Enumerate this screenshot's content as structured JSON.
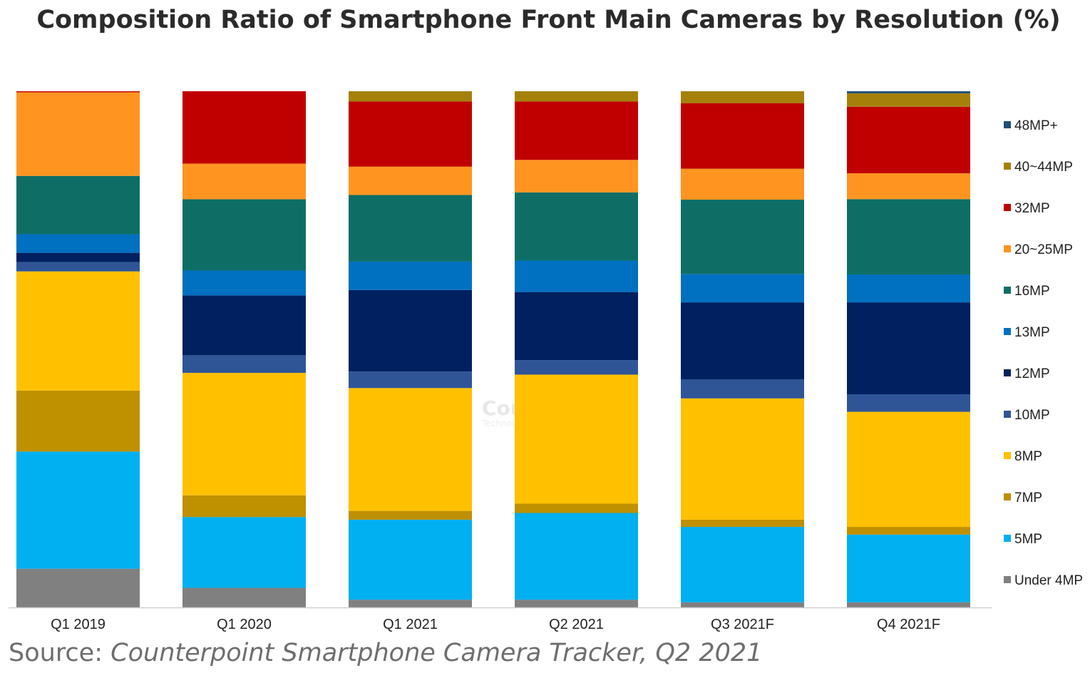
{
  "title": "Composition Ratio of Smartphone Front Main Cameras by Resolution (%)",
  "source": {
    "prefix": "Source:",
    "text": "Counterpoint Smartphone Camera Tracker, Q2 2021"
  },
  "watermark": {
    "name": "Counterpoint",
    "tagline": "Technology Market Research"
  },
  "chart_data": {
    "type": "bar",
    "stacked": true,
    "normalized_to": 100,
    "title": "Composition Ratio of Smartphone Front Main Cameras by Resolution (%)",
    "xlabel": "",
    "ylabel": "",
    "ylim": [
      0,
      100
    ],
    "grid": false,
    "legend_position": "right",
    "categories": [
      "Q1 2019",
      "Q1 2020",
      "Q1 2021",
      "Q2 2021",
      "Q3 2021F",
      "Q4 2021F"
    ],
    "series": [
      {
        "name": "Under 4MP",
        "color": "#808080",
        "values": [
          7.5,
          3.8,
          1.5,
          1.5,
          1.0,
          1.0
        ]
      },
      {
        "name": "5MP",
        "color": "#00B0F0",
        "values": [
          22.7,
          13.7,
          15.5,
          16.8,
          14.6,
          13.1
        ]
      },
      {
        "name": "7MP",
        "color": "#BF9000",
        "values": [
          11.8,
          4.2,
          1.7,
          1.8,
          1.4,
          1.5
        ]
      },
      {
        "name": "8MP",
        "color": "#FFC000",
        "values": [
          23.1,
          23.7,
          23.8,
          25.0,
          23.5,
          22.3
        ]
      },
      {
        "name": "10MP",
        "color": "#2F5597",
        "values": [
          1.8,
          3.4,
          3.2,
          2.8,
          3.7,
          3.4
        ]
      },
      {
        "name": "12MP",
        "color": "#002060",
        "values": [
          1.8,
          11.6,
          15.8,
          13.2,
          14.9,
          17.8
        ]
      },
      {
        "name": "13MP",
        "color": "#0070C0",
        "values": [
          3.6,
          4.8,
          5.5,
          6.1,
          5.5,
          5.4
        ]
      },
      {
        "name": "16MP",
        "color": "#0E6E66",
        "values": [
          11.3,
          13.8,
          12.9,
          13.2,
          14.4,
          14.6
        ]
      },
      {
        "name": "20~25MP",
        "color": "#FF9520",
        "values": [
          16.2,
          6.9,
          5.5,
          6.3,
          6.0,
          5.0
        ]
      },
      {
        "name": "32MP",
        "color": "#C00000",
        "values": [
          0.2,
          14.0,
          12.6,
          11.3,
          12.7,
          12.9
        ]
      },
      {
        "name": "40~44MP",
        "color": "#A5810B",
        "values": [
          0.0,
          0.0,
          2.0,
          2.0,
          2.3,
          2.6
        ]
      },
      {
        "name": "48MP+",
        "color": "#1F4E79",
        "values": [
          0.0,
          0.0,
          0.0,
          0.0,
          0.0,
          0.4
        ]
      }
    ]
  }
}
